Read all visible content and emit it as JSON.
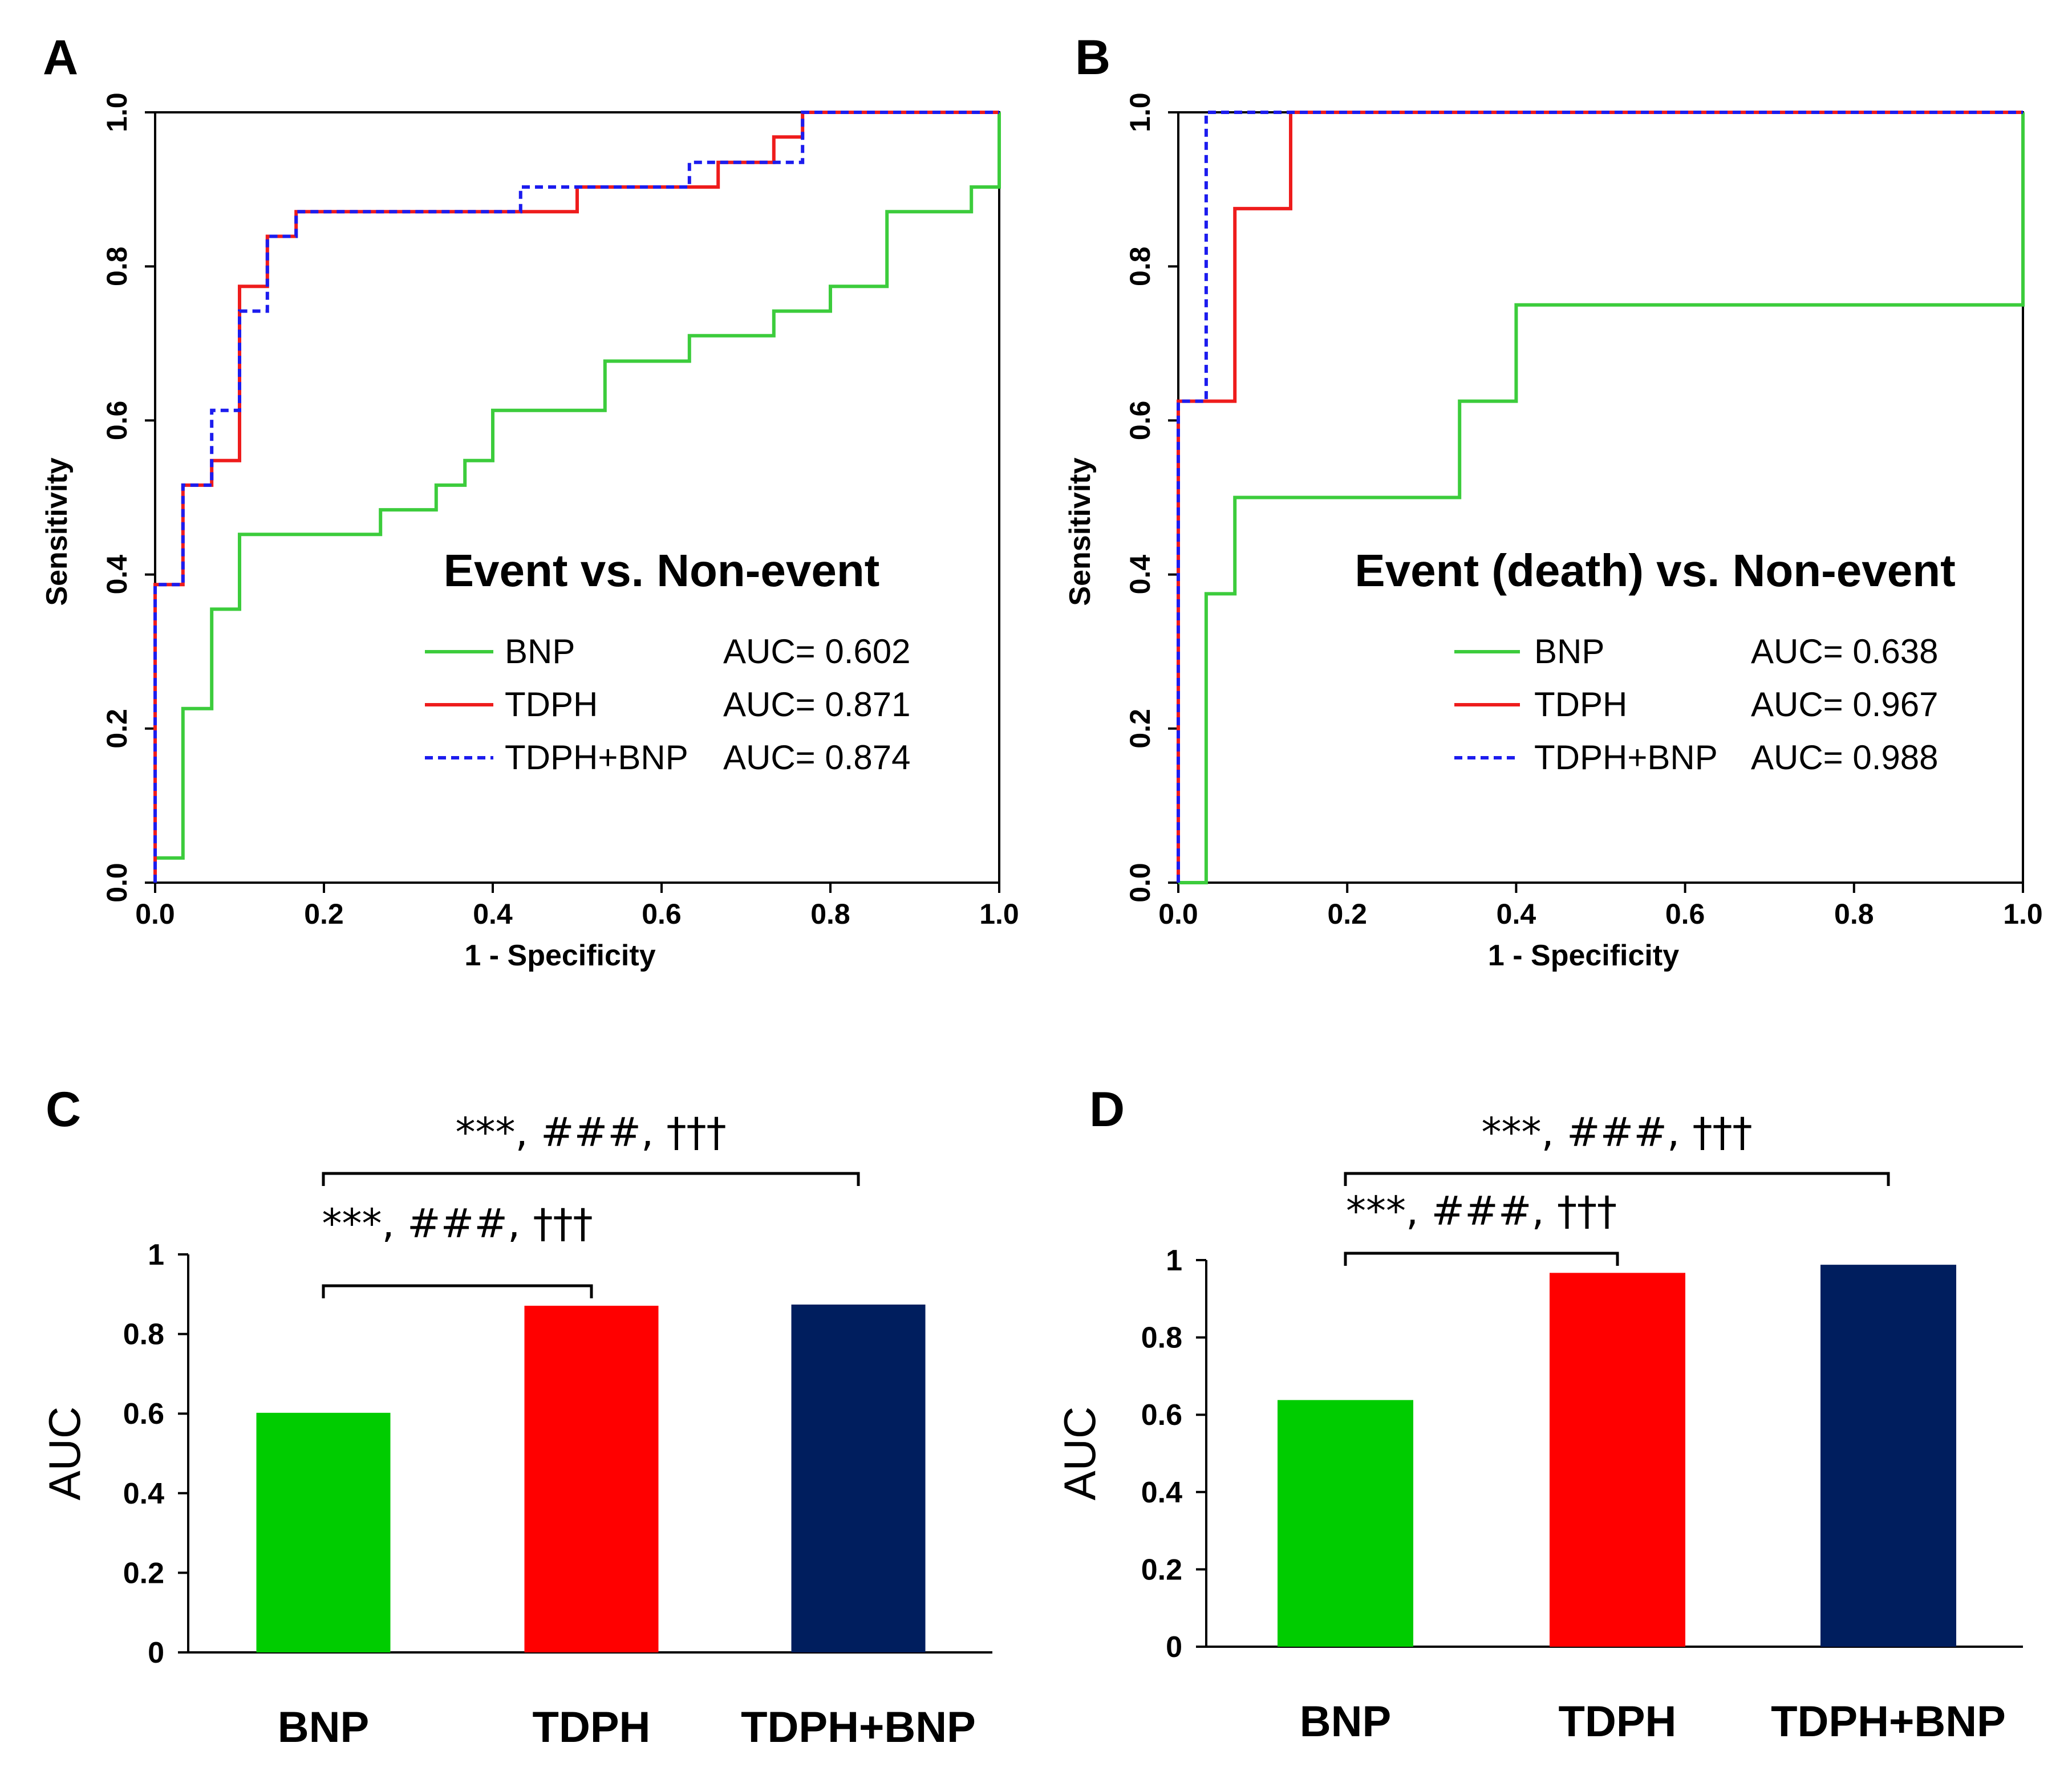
{
  "colors": {
    "bnp": "#3ccc3c",
    "tdph": "#ee1c1c",
    "combo": "#1c1cee",
    "bar_bnp": "#00cc00",
    "bar_tdph": "#ff0000",
    "bar_combo": "#001e5e"
  },
  "chart_data": [
    {
      "type": "line",
      "panel": "A",
      "title": "Event vs. Non-event",
      "xlabel": "1 - Specificity",
      "ylabel": "Sensitivity",
      "xlim": [
        0,
        1
      ],
      "ylim": [
        0,
        1
      ],
      "xticks": [
        "0.0",
        "0.2",
        "0.4",
        "0.6",
        "0.8",
        "1.0"
      ],
      "yticks": [
        "0.0",
        "0.2",
        "0.4",
        "0.6",
        "0.8",
        "1.0"
      ],
      "series": [
        {
          "name": "BNP",
          "auc_label": "AUC= 0.602",
          "style": "solid",
          "color_key": "bnp",
          "points": [
            [
              0,
              0
            ],
            [
              0,
              0.032
            ],
            [
              0.033,
              0.032
            ],
            [
              0.033,
              0.226
            ],
            [
              0.067,
              0.226
            ],
            [
              0.067,
              0.355
            ],
            [
              0.1,
              0.355
            ],
            [
              0.1,
              0.452
            ],
            [
              0.267,
              0.452
            ],
            [
              0.267,
              0.484
            ],
            [
              0.333,
              0.484
            ],
            [
              0.333,
              0.516
            ],
            [
              0.367,
              0.516
            ],
            [
              0.367,
              0.548
            ],
            [
              0.4,
              0.548
            ],
            [
              0.4,
              0.613
            ],
            [
              0.533,
              0.613
            ],
            [
              0.533,
              0.677
            ],
            [
              0.633,
              0.677
            ],
            [
              0.633,
              0.71
            ],
            [
              0.733,
              0.71
            ],
            [
              0.733,
              0.742
            ],
            [
              0.8,
              0.742
            ],
            [
              0.8,
              0.774
            ],
            [
              0.867,
              0.774
            ],
            [
              0.867,
              0.871
            ],
            [
              0.967,
              0.871
            ],
            [
              0.967,
              0.903
            ],
            [
              1,
              0.903
            ],
            [
              1,
              1
            ]
          ]
        },
        {
          "name": "TDPH",
          "auc_label": "AUC= 0.871",
          "style": "solid",
          "color_key": "tdph",
          "points": [
            [
              0,
              0
            ],
            [
              0,
              0.387
            ],
            [
              0.033,
              0.387
            ],
            [
              0.033,
              0.516
            ],
            [
              0.067,
              0.516
            ],
            [
              0.067,
              0.548
            ],
            [
              0.1,
              0.548
            ],
            [
              0.1,
              0.774
            ],
            [
              0.133,
              0.774
            ],
            [
              0.133,
              0.839
            ],
            [
              0.167,
              0.839
            ],
            [
              0.167,
              0.871
            ],
            [
              0.5,
              0.871
            ],
            [
              0.5,
              0.903
            ],
            [
              0.667,
              0.903
            ],
            [
              0.667,
              0.935
            ],
            [
              0.733,
              0.935
            ],
            [
              0.733,
              0.968
            ],
            [
              0.767,
              0.968
            ],
            [
              0.767,
              1
            ],
            [
              1,
              1
            ]
          ]
        },
        {
          "name": "TDPH+BNP",
          "auc_label": "AUC= 0.874",
          "style": "dashed",
          "color_key": "combo",
          "points": [
            [
              0,
              0
            ],
            [
              0,
              0.387
            ],
            [
              0.033,
              0.387
            ],
            [
              0.033,
              0.516
            ],
            [
              0.067,
              0.516
            ],
            [
              0.067,
              0.613
            ],
            [
              0.1,
              0.613
            ],
            [
              0.1,
              0.742
            ],
            [
              0.133,
              0.742
            ],
            [
              0.133,
              0.839
            ],
            [
              0.167,
              0.839
            ],
            [
              0.167,
              0.871
            ],
            [
              0.433,
              0.871
            ],
            [
              0.433,
              0.903
            ],
            [
              0.633,
              0.903
            ],
            [
              0.633,
              0.935
            ],
            [
              0.767,
              0.935
            ],
            [
              0.767,
              1
            ],
            [
              1,
              1
            ]
          ]
        }
      ]
    },
    {
      "type": "line",
      "panel": "B",
      "title": "Event (death) vs. Non-event",
      "xlabel": "1 - Specificity",
      "ylabel": "Sensitivity",
      "xlim": [
        0,
        1
      ],
      "ylim": [
        0,
        1
      ],
      "xticks": [
        "0.0",
        "0.2",
        "0.4",
        "0.6",
        "0.8",
        "1.0"
      ],
      "yticks": [
        "0.0",
        "0.2",
        "0.4",
        "0.6",
        "0.8",
        "1.0"
      ],
      "series": [
        {
          "name": "BNP",
          "auc_label": "AUC= 0.638",
          "style": "solid",
          "color_key": "bnp",
          "points": [
            [
              0,
              0
            ],
            [
              0.033,
              0
            ],
            [
              0.033,
              0.375
            ],
            [
              0.067,
              0.375
            ],
            [
              0.067,
              0.5
            ],
            [
              0.333,
              0.5
            ],
            [
              0.333,
              0.625
            ],
            [
              0.4,
              0.625
            ],
            [
              0.4,
              0.75
            ],
            [
              1,
              0.75
            ],
            [
              1,
              1
            ]
          ]
        },
        {
          "name": "TDPH",
          "auc_label": "AUC= 0.967",
          "style": "solid",
          "color_key": "tdph",
          "points": [
            [
              0,
              0
            ],
            [
              0,
              0.625
            ],
            [
              0.067,
              0.625
            ],
            [
              0.067,
              0.875
            ],
            [
              0.133,
              0.875
            ],
            [
              0.133,
              1
            ],
            [
              1,
              1
            ]
          ]
        },
        {
          "name": "TDPH+BNP",
          "auc_label": "AUC= 0.988",
          "style": "dashed",
          "color_key": "combo",
          "points": [
            [
              0,
              0
            ],
            [
              0,
              0.625
            ],
            [
              0.033,
              0.625
            ],
            [
              0.033,
              1
            ],
            [
              1,
              1
            ]
          ]
        }
      ]
    },
    {
      "type": "bar",
      "panel": "C",
      "ylabel": "AUC",
      "ylim": [
        0,
        1
      ],
      "yticks": [
        "0",
        "0.2",
        "0.4",
        "0.6",
        "0.8",
        "1"
      ],
      "categories": [
        "BNP",
        "TDPH",
        "TDPH+BNP"
      ],
      "values": [
        0.602,
        0.871,
        0.874
      ],
      "bar_color_keys": [
        "bar_bnp",
        "bar_tdph",
        "bar_combo"
      ],
      "brackets": [
        {
          "from": 0,
          "to": 2,
          "label": "***, ###, †††"
        },
        {
          "from": 0,
          "to": 1,
          "label": "***, ###, †††"
        }
      ]
    },
    {
      "type": "bar",
      "panel": "D",
      "ylabel": "AUC",
      "ylim": [
        0,
        1
      ],
      "yticks": [
        "0",
        "0.2",
        "0.4",
        "0.6",
        "0.8",
        "1"
      ],
      "categories": [
        "BNP",
        "TDPH",
        "TDPH+BNP"
      ],
      "values": [
        0.638,
        0.967,
        0.988
      ],
      "bar_color_keys": [
        "bar_bnp",
        "bar_tdph",
        "bar_combo"
      ],
      "brackets": [
        {
          "from": 0,
          "to": 2,
          "label": "***, ###, †††"
        },
        {
          "from": 0,
          "to": 1,
          "label": "***, ###, †††"
        }
      ]
    }
  ]
}
